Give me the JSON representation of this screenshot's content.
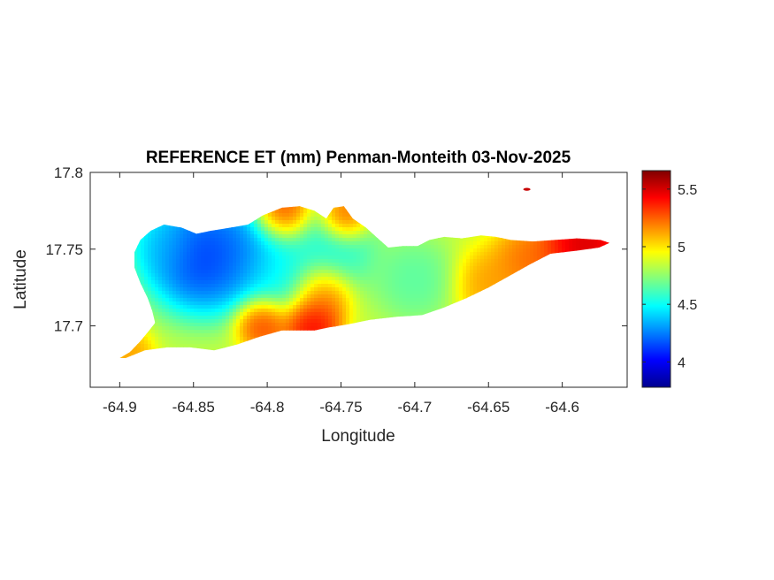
{
  "chart_data": {
    "type": "heatmap",
    "title": "REFERENCE ET (mm) Penman-Monteith 03-Nov-2025",
    "xlabel": "Longitude",
    "ylabel": "Latitude",
    "xlim": [
      -64.92,
      -64.556
    ],
    "ylim": [
      17.66,
      17.8
    ],
    "xticks": [
      -64.9,
      -64.85,
      -64.8,
      -64.75,
      -64.7,
      -64.65,
      -64.6
    ],
    "xtick_labels": [
      "-64.9",
      "-64.85",
      "-64.8",
      "-64.75",
      "-64.7",
      "-64.65",
      "-64.6"
    ],
    "yticks": [
      17.7,
      17.75,
      17.8
    ],
    "ytick_labels": [
      "17.7",
      "17.75",
      "17.8"
    ],
    "colorbar": {
      "colormap": "jet",
      "range": [
        3.78,
        5.66
      ],
      "ticks": [
        4,
        4.5,
        5,
        5.5
      ],
      "tick_labels": [
        "4",
        "4.5",
        "5",
        "5.5"
      ]
    },
    "grid": false,
    "island_outline": [
      [
        -64.9,
        17.679
      ],
      [
        -64.893,
        17.683
      ],
      [
        -64.886,
        17.69
      ],
      [
        -64.88,
        17.697
      ],
      [
        -64.876,
        17.702
      ],
      [
        -64.878,
        17.71
      ],
      [
        -64.881,
        17.718
      ],
      [
        -64.886,
        17.728
      ],
      [
        -64.89,
        17.738
      ],
      [
        -64.89,
        17.748
      ],
      [
        -64.886,
        17.756
      ],
      [
        -64.879,
        17.762
      ],
      [
        -64.87,
        17.766
      ],
      [
        -64.858,
        17.764
      ],
      [
        -64.848,
        17.76
      ],
      [
        -64.838,
        17.762
      ],
      [
        -64.825,
        17.764
      ],
      [
        -64.813,
        17.766
      ],
      [
        -64.803,
        17.772
      ],
      [
        -64.79,
        17.777
      ],
      [
        -64.778,
        17.778
      ],
      [
        -64.768,
        17.775
      ],
      [
        -64.76,
        17.77
      ],
      [
        -64.755,
        17.777
      ],
      [
        -64.748,
        17.778
      ],
      [
        -64.742,
        17.77
      ],
      [
        -64.733,
        17.764
      ],
      [
        -64.725,
        17.757
      ],
      [
        -64.718,
        17.751
      ],
      [
        -64.708,
        17.752
      ],
      [
        -64.698,
        17.752
      ],
      [
        -64.69,
        17.756
      ],
      [
        -64.68,
        17.758
      ],
      [
        -64.668,
        17.757
      ],
      [
        -64.655,
        17.759
      ],
      [
        -64.645,
        17.758
      ],
      [
        -64.635,
        17.756
      ],
      [
        -64.62,
        17.755
      ],
      [
        -64.605,
        17.756
      ],
      [
        -64.59,
        17.757
      ],
      [
        -64.574,
        17.756
      ],
      [
        -64.568,
        17.754
      ],
      [
        -64.575,
        17.751
      ],
      [
        -64.59,
        17.749
      ],
      [
        -64.608,
        17.747
      ],
      [
        -64.622,
        17.74
      ],
      [
        -64.635,
        17.733
      ],
      [
        -64.65,
        17.725
      ],
      [
        -64.665,
        17.718
      ],
      [
        -64.68,
        17.712
      ],
      [
        -64.695,
        17.707
      ],
      [
        -64.712,
        17.706
      ],
      [
        -64.73,
        17.704
      ],
      [
        -64.745,
        17.701
      ],
      [
        -64.758,
        17.699
      ],
      [
        -64.768,
        17.697
      ],
      [
        -64.778,
        17.697
      ],
      [
        -64.79,
        17.697
      ],
      [
        -64.805,
        17.693
      ],
      [
        -64.82,
        17.688
      ],
      [
        -64.836,
        17.684
      ],
      [
        -64.852,
        17.686
      ],
      [
        -64.868,
        17.686
      ],
      [
        -64.883,
        17.684
      ],
      [
        -64.896,
        17.679
      ]
    ],
    "islet": [
      -64.624,
      17.789
    ],
    "et_centers": [
      {
        "lon": -64.846,
        "lat": 17.745,
        "value": 3.9,
        "spread": 0.02
      },
      {
        "lon": -64.82,
        "lat": 17.748,
        "value": 4.15,
        "spread": 0.018
      },
      {
        "lon": -64.868,
        "lat": 17.752,
        "value": 4.35,
        "spread": 0.013
      },
      {
        "lon": -64.79,
        "lat": 17.735,
        "value": 4.45,
        "spread": 0.016
      },
      {
        "lon": -64.755,
        "lat": 17.75,
        "value": 4.45,
        "spread": 0.016
      },
      {
        "lon": -64.7,
        "lat": 17.73,
        "value": 4.6,
        "spread": 0.015
      },
      {
        "lon": -64.77,
        "lat": 17.701,
        "value": 5.6,
        "spread": 0.011
      },
      {
        "lon": -64.803,
        "lat": 17.702,
        "value": 5.45,
        "spread": 0.01
      },
      {
        "lon": -64.763,
        "lat": 17.722,
        "value": 5.35,
        "spread": 0.011
      },
      {
        "lon": -64.79,
        "lat": 17.774,
        "value": 5.45,
        "spread": 0.011
      },
      {
        "lon": -64.748,
        "lat": 17.77,
        "value": 5.5,
        "spread": 0.009
      },
      {
        "lon": -64.585,
        "lat": 17.753,
        "value": 5.7,
        "spread": 0.018
      },
      {
        "lon": -64.625,
        "lat": 17.742,
        "value": 5.3,
        "spread": 0.013
      },
      {
        "lon": -64.65,
        "lat": 17.727,
        "value": 5.2,
        "spread": 0.013
      },
      {
        "lon": -64.893,
        "lat": 17.682,
        "value": 5.2,
        "spread": 0.009
      }
    ]
  }
}
